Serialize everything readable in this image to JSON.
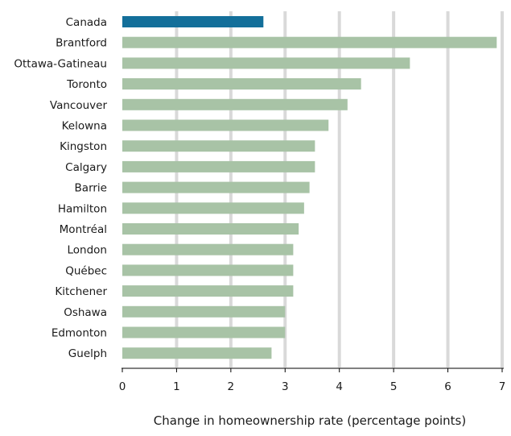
{
  "chart_data": {
    "type": "bar",
    "orientation": "horizontal",
    "categories": [
      "Canada",
      "Brantford",
      "Ottawa-Gatineau",
      "Toronto",
      "Vancouver",
      "Kelowna",
      "Kingston",
      "Calgary",
      "Barrie",
      "Hamilton",
      "Montréal",
      "London",
      "Québec",
      "Kitchener",
      "Oshawa",
      "Edmonton",
      "Guelph"
    ],
    "values": [
      2.6,
      6.9,
      5.3,
      4.4,
      4.15,
      3.8,
      3.55,
      3.55,
      3.45,
      3.35,
      3.25,
      3.15,
      3.15,
      3.15,
      3.0,
      3.0,
      2.75
    ],
    "highlight_category": "Canada",
    "title": "",
    "xlabel": "Change in homeownership rate (percentage points)",
    "ylabel": "",
    "xlim": [
      0,
      7
    ],
    "xticks": [
      "0",
      "1",
      "2",
      "3",
      "4",
      "5",
      "6",
      "7"
    ],
    "grid": true,
    "colors": {
      "highlight": "#136f9a",
      "bar": "#a8c3a6",
      "grid": "#d9d9d9",
      "axis": "#000000"
    }
  }
}
